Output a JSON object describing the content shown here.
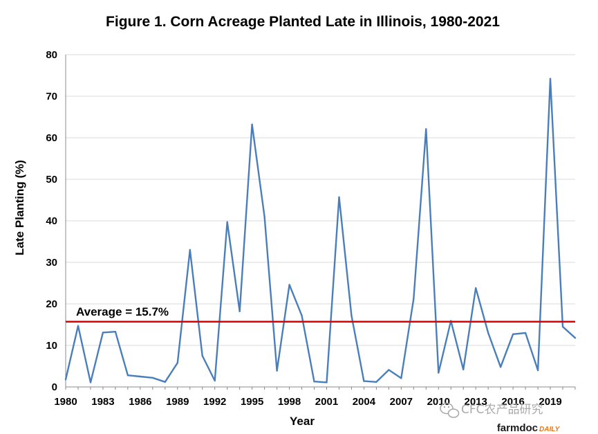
{
  "chart_data": {
    "type": "line",
    "title": "Figure 1. Corn Acreage Planted Late in Illinois, 1980-2021",
    "xlabel": "Year",
    "ylabel": "Late Planting (%)",
    "xlim": [
      1980,
      2021
    ],
    "ylim": [
      0,
      80
    ],
    "y_ticks": [
      0,
      10,
      20,
      30,
      40,
      50,
      60,
      70,
      80
    ],
    "x_tick_labels": [
      "1980",
      "1983",
      "1986",
      "1989",
      "1992",
      "1995",
      "1998",
      "2001",
      "2004",
      "2007",
      "2010",
      "2013",
      "2016",
      "2019"
    ],
    "grid": true,
    "series": [
      {
        "name": "Late Planting",
        "color": "#4a7ebb",
        "x": [
          1980,
          1981,
          1982,
          1983,
          1984,
          1985,
          1986,
          1987,
          1988,
          1989,
          1990,
          1991,
          1992,
          1993,
          1994,
          1995,
          1996,
          1997,
          1998,
          1999,
          2000,
          2001,
          2002,
          2003,
          2004,
          2005,
          2006,
          2007,
          2008,
          2009,
          2010,
          2011,
          2012,
          2013,
          2014,
          2015,
          2016,
          2017,
          2018,
          2019,
          2020,
          2021
        ],
        "values": [
          1.8,
          14.7,
          1.1,
          13.1,
          13.3,
          2.8,
          2.5,
          2.2,
          1.2,
          5.8,
          33.0,
          7.5,
          1.5,
          39.7,
          18.2,
          63.2,
          41.0,
          3.9,
          24.6,
          17.2,
          1.3,
          1.1,
          45.7,
          17.2,
          1.4,
          1.2,
          4.1,
          2.1,
          21.2,
          62.1,
          3.4,
          15.9,
          4.2,
          23.8,
          13.0,
          4.8,
          12.7,
          13.0,
          4.0,
          74.2,
          14.5,
          11.8
        ]
      }
    ],
    "reference_line": {
      "value": 15.7,
      "color": "#e00000",
      "label": "Average = 15.7%"
    }
  },
  "watermark": {
    "text": "CFC农产品研究",
    "icon": "wechat-icon"
  },
  "logo": {
    "part1": "farmdoc",
    "part2": "DAILY",
    "color1": "#1a1a1a",
    "color2": "#e8761a"
  }
}
